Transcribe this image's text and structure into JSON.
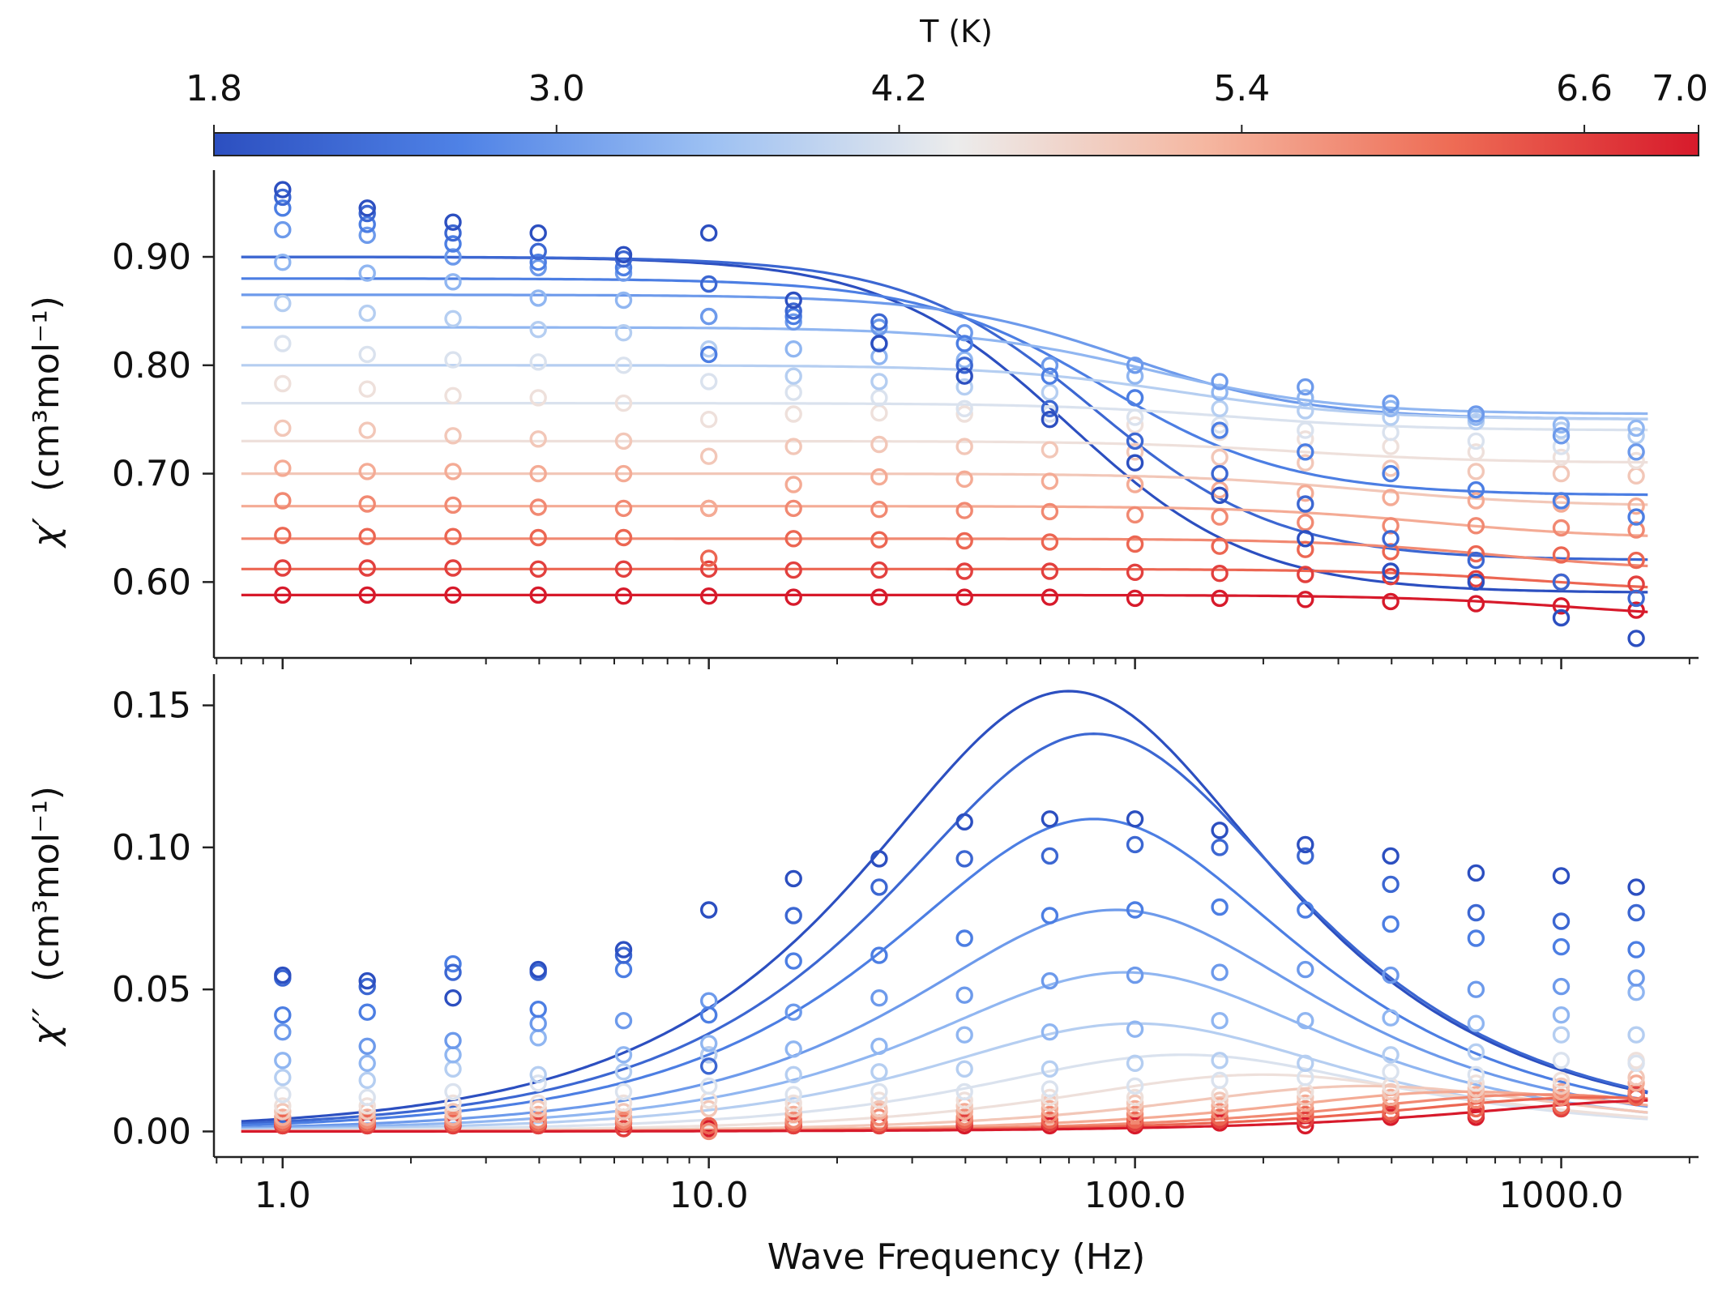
{
  "chart_data": {
    "type": "line+scatter",
    "colorbar": {
      "title": "T (K)",
      "tick_labels": [
        "1.8",
        "3.0",
        "4.2",
        "5.4",
        "6.6",
        "7.0"
      ],
      "range": [
        1.8,
        7.0
      ],
      "colormap": [
        "#2c4fc0",
        "#4f82e6",
        "#9cc0f3",
        "#ececec",
        "#f5b7a1",
        "#ee6c55",
        "#d71a2b"
      ]
    },
    "temperatures": [
      1.8,
      2.2,
      2.6,
      3.0,
      3.4,
      3.8,
      4.2,
      4.6,
      5.0,
      5.4,
      5.8,
      6.2,
      6.6,
      7.0
    ],
    "frequencies_hz": [
      1,
      1.58,
      2.51,
      3.98,
      6.31,
      10,
      15.8,
      25.1,
      39.8,
      63.1,
      100,
      158,
      251,
      398,
      631,
      1000,
      1500
    ],
    "xaxis": {
      "label": "Wave Frequency (Hz)",
      "scale": "log",
      "xlim": [
        0.69,
        2100
      ],
      "tick_values": [
        1,
        10,
        100,
        1000
      ],
      "tick_labels": [
        "1.0",
        "10.0",
        "100.0",
        "1000.0"
      ]
    },
    "top_panel": {
      "ylabel_symbol": "χ′",
      "ylabel_unit": "(cm³mol⁻¹)",
      "ylim": [
        0.53,
        0.98
      ],
      "tick_values": [
        0.6,
        0.7,
        0.8,
        0.9
      ],
      "tick_labels": [
        "0.60",
        "0.70",
        "0.80",
        "0.90"
      ],
      "fits": [
        {
          "T": 1.8,
          "chiT": 0.9,
          "chiS": 0.59,
          "f0": 70
        },
        {
          "T": 2.2,
          "chiT": 0.9,
          "chiS": 0.62,
          "f0": 80
        },
        {
          "T": 2.6,
          "chiT": 0.88,
          "chiS": 0.68,
          "f0": 85
        },
        {
          "T": 3.0,
          "chiT": 0.865,
          "chiS": 0.75,
          "f0": 95
        },
        {
          "T": 3.4,
          "chiT": 0.835,
          "chiS": 0.755,
          "f0": 110
        },
        {
          "T": 3.8,
          "chiT": 0.8,
          "chiS": 0.75,
          "f0": 130
        },
        {
          "T": 4.2,
          "chiT": 0.765,
          "chiS": 0.74,
          "f0": 170
        },
        {
          "T": 4.6,
          "chiT": 0.73,
          "chiS": 0.71,
          "f0": 250
        },
        {
          "T": 5.0,
          "chiT": 0.7,
          "chiS": 0.67,
          "f0": 350
        },
        {
          "T": 5.4,
          "chiT": 0.67,
          "chiS": 0.64,
          "f0": 500
        },
        {
          "T": 5.8,
          "chiT": 0.64,
          "chiS": 0.61,
          "f0": 700
        },
        {
          "T": 6.2,
          "chiT": 0.612,
          "chiS": 0.59,
          "f0": 900
        },
        {
          "T": 7.0,
          "chiT": 0.588,
          "chiS": 0.565,
          "f0": 1100
        }
      ],
      "points": [
        {
          "T": 1.8,
          "values": [
            0.962,
            0.945,
            0.932,
            0.922,
            0.902,
            0.922,
            0.86,
            0.82,
            0.79,
            0.75,
            0.71,
            0.68,
            0.64,
            0.61,
            0.6,
            0.567,
            0.548
          ]
        },
        {
          "T": 2.2,
          "values": [
            0.955,
            0.94,
            0.922,
            0.905,
            0.898,
            0.875,
            0.85,
            0.84,
            0.8,
            0.76,
            0.73,
            0.7,
            0.672,
            0.64,
            0.62,
            0.6,
            0.585
          ]
        },
        {
          "T": 2.6,
          "values": [
            0.945,
            0.93,
            0.912,
            0.895,
            0.89,
            0.81,
            0.845,
            0.82,
            0.82,
            0.79,
            0.77,
            0.74,
            0.72,
            0.7,
            0.685,
            0.675,
            0.66
          ]
        },
        {
          "T": 3.0,
          "values": [
            0.925,
            0.92,
            0.9,
            0.89,
            0.885,
            0.845,
            0.84,
            0.835,
            0.83,
            0.8,
            0.8,
            0.785,
            0.78,
            0.765,
            0.755,
            0.735,
            0.72
          ]
        },
        {
          "T": 3.4,
          "values": [
            0.895,
            0.885,
            0.877,
            0.862,
            0.86,
            0.845,
            0.815,
            0.808,
            0.805,
            0.8,
            0.79,
            0.775,
            0.77,
            0.76,
            0.752,
            0.745,
            0.742
          ]
        },
        {
          "T": 3.8,
          "values": [
            0.857,
            0.848,
            0.843,
            0.833,
            0.83,
            0.815,
            0.79,
            0.785,
            0.78,
            0.775,
            0.77,
            0.76,
            0.758,
            0.752,
            0.748,
            0.74,
            0.735
          ]
        },
        {
          "T": 4.2,
          "values": [
            0.82,
            0.81,
            0.805,
            0.803,
            0.8,
            0.785,
            0.775,
            0.77,
            0.76,
            0.755,
            0.752,
            0.745,
            0.74,
            0.738,
            0.73,
            0.725,
            0.72
          ]
        },
        {
          "T": 4.6,
          "values": [
            0.783,
            0.778,
            0.772,
            0.77,
            0.765,
            0.75,
            0.755,
            0.756,
            0.755,
            0.75,
            0.745,
            0.738,
            0.732,
            0.725,
            0.72,
            0.715,
            0.712
          ]
        },
        {
          "T": 5.0,
          "values": [
            0.742,
            0.74,
            0.735,
            0.732,
            0.73,
            0.716,
            0.725,
            0.727,
            0.725,
            0.722,
            0.72,
            0.715,
            0.71,
            0.705,
            0.702,
            0.7,
            0.698
          ]
        },
        {
          "T": 5.4,
          "values": [
            0.705,
            0.702,
            0.702,
            0.7,
            0.7,
            0.668,
            0.69,
            0.697,
            0.695,
            0.693,
            0.69,
            0.685,
            0.682,
            0.678,
            0.675,
            0.672,
            0.67
          ]
        },
        {
          "T": 5.8,
          "values": [
            0.675,
            0.672,
            0.671,
            0.669,
            0.668,
            0.668,
            0.668,
            0.667,
            0.666,
            0.665,
            0.662,
            0.66,
            0.655,
            0.652,
            0.652,
            0.65,
            0.648
          ]
        },
        {
          "T": 6.2,
          "values": [
            0.643,
            0.642,
            0.642,
            0.641,
            0.641,
            0.622,
            0.64,
            0.639,
            0.638,
            0.637,
            0.635,
            0.633,
            0.63,
            0.628,
            0.626,
            0.625,
            0.62
          ]
        },
        {
          "T": 6.6,
          "values": [
            0.613,
            0.613,
            0.613,
            0.612,
            0.612,
            0.612,
            0.611,
            0.611,
            0.61,
            0.61,
            0.609,
            0.608,
            0.607,
            0.605,
            0.603,
            0.6,
            0.598
          ]
        },
        {
          "T": 7.0,
          "values": [
            0.588,
            0.588,
            0.588,
            0.588,
            0.587,
            0.587,
            0.586,
            0.586,
            0.586,
            0.586,
            0.585,
            0.585,
            0.584,
            0.582,
            0.58,
            0.578,
            0.574
          ]
        }
      ]
    },
    "bottom_panel": {
      "ylabel_symbol": "χ′′",
      "ylabel_unit": "(cm³mol⁻¹)",
      "ylim": [
        -0.009,
        0.161
      ],
      "tick_values": [
        0.0,
        0.05,
        0.1,
        0.15
      ],
      "tick_labels": [
        "0.00",
        "0.05",
        "0.10",
        "0.15"
      ],
      "fits": [
        {
          "T": 1.8,
          "peak": 0.155,
          "f0": 70
        },
        {
          "T": 2.2,
          "peak": 0.14,
          "f0": 80
        },
        {
          "T": 2.6,
          "peak": 0.11,
          "f0": 80
        },
        {
          "T": 3.0,
          "peak": 0.078,
          "f0": 90
        },
        {
          "T": 3.4,
          "peak": 0.056,
          "f0": 95
        },
        {
          "T": 3.8,
          "peak": 0.038,
          "f0": 100
        },
        {
          "T": 4.2,
          "peak": 0.027,
          "f0": 130
        },
        {
          "T": 4.6,
          "peak": 0.02,
          "f0": 200
        },
        {
          "T": 5.0,
          "peak": 0.016,
          "f0": 350
        },
        {
          "T": 5.4,
          "peak": 0.014,
          "f0": 600
        },
        {
          "T": 5.8,
          "peak": 0.013,
          "f0": 900
        },
        {
          "T": 6.2,
          "peak": 0.012,
          "f0": 1200
        },
        {
          "T": 7.0,
          "peak": 0.011,
          "f0": 1800
        }
      ],
      "points": [
        {
          "T": 1.8,
          "values": [
            0.055,
            0.053,
            0.047,
            0.057,
            0.064,
            0.078,
            0.089,
            0.096,
            0.109,
            0.11,
            0.11,
            0.106,
            0.101,
            0.097,
            0.091,
            0.09,
            0.086
          ]
        },
        {
          "T": 2.2,
          "values": [
            0.054,
            0.051,
            0.056,
            0.056,
            0.062,
            0.023,
            0.076,
            0.086,
            0.096,
            0.097,
            0.101,
            0.1,
            0.097,
            0.087,
            0.077,
            0.074,
            0.077
          ]
        },
        {
          "T": 2.6,
          "values": [
            0.041,
            0.042,
            0.059,
            0.043,
            0.057,
            0.041,
            0.06,
            0.062,
            0.068,
            0.076,
            0.078,
            0.079,
            0.078,
            0.073,
            0.068,
            0.065,
            0.064
          ]
        },
        {
          "T": 3.0,
          "values": [
            0.035,
            0.03,
            0.032,
            0.038,
            0.039,
            0.046,
            0.042,
            0.047,
            0.048,
            0.053,
            0.055,
            0.056,
            0.057,
            0.055,
            0.05,
            0.051,
            0.054
          ]
        },
        {
          "T": 3.4,
          "values": [
            0.025,
            0.024,
            0.027,
            0.033,
            0.027,
            0.031,
            0.029,
            0.03,
            0.034,
            0.035,
            0.036,
            0.039,
            0.039,
            0.04,
            0.038,
            0.041,
            0.049
          ]
        },
        {
          "T": 3.8,
          "values": [
            0.019,
            0.018,
            0.022,
            0.02,
            0.021,
            0.027,
            0.02,
            0.021,
            0.022,
            0.022,
            0.024,
            0.025,
            0.024,
            0.027,
            0.028,
            0.034,
            0.034
          ]
        },
        {
          "T": 4.2,
          "values": [
            0.013,
            0.012,
            0.014,
            0.017,
            0.014,
            0.016,
            0.013,
            0.014,
            0.014,
            0.015,
            0.016,
            0.018,
            0.019,
            0.021,
            0.02,
            0.025,
            0.024
          ]
        },
        {
          "T": 4.6,
          "values": [
            0.009,
            0.009,
            0.01,
            0.01,
            0.01,
            0.011,
            0.01,
            0.011,
            0.011,
            0.012,
            0.012,
            0.013,
            0.014,
            0.016,
            0.017,
            0.018,
            0.025
          ]
        },
        {
          "T": 5.0,
          "values": [
            0.007,
            0.007,
            0.007,
            0.008,
            0.007,
            0.008,
            0.008,
            0.008,
            0.009,
            0.01,
            0.01,
            0.011,
            0.012,
            0.014,
            0.015,
            0.016,
            0.019
          ]
        },
        {
          "T": 5.4,
          "values": [
            0.005,
            0.005,
            0.005,
            0.006,
            0.005,
            0.027,
            0.006,
            0.007,
            0.007,
            0.008,
            0.008,
            0.009,
            0.01,
            0.012,
            0.013,
            0.014,
            0.017
          ]
        },
        {
          "T": 5.8,
          "values": [
            0.004,
            0.004,
            0.004,
            0.004,
            0.004,
            0.0,
            0.004,
            0.005,
            0.005,
            0.006,
            0.006,
            0.007,
            0.008,
            0.009,
            0.011,
            0.012,
            0.014
          ]
        },
        {
          "T": 6.2,
          "values": [
            0.003,
            0.003,
            0.003,
            0.003,
            0.003,
            0.002,
            0.003,
            0.003,
            0.004,
            0.004,
            0.004,
            0.005,
            0.006,
            0.007,
            0.008,
            0.009,
            0.012
          ]
        },
        {
          "T": 6.6,
          "values": [
            0.002,
            0.002,
            0.002,
            0.002,
            0.001,
            0.002,
            0.002,
            0.002,
            0.003,
            0.003,
            0.003,
            0.004,
            0.004,
            0.006,
            0.006,
            0.008,
            0.013
          ]
        },
        {
          "T": 7.0,
          "values": [
            0.002,
            0.002,
            0.002,
            0.002,
            0.001,
            0.001,
            0.002,
            0.002,
            0.002,
            0.002,
            0.002,
            0.003,
            0.002,
            0.005,
            0.005,
            0.008,
            0.012
          ]
        }
      ]
    }
  }
}
